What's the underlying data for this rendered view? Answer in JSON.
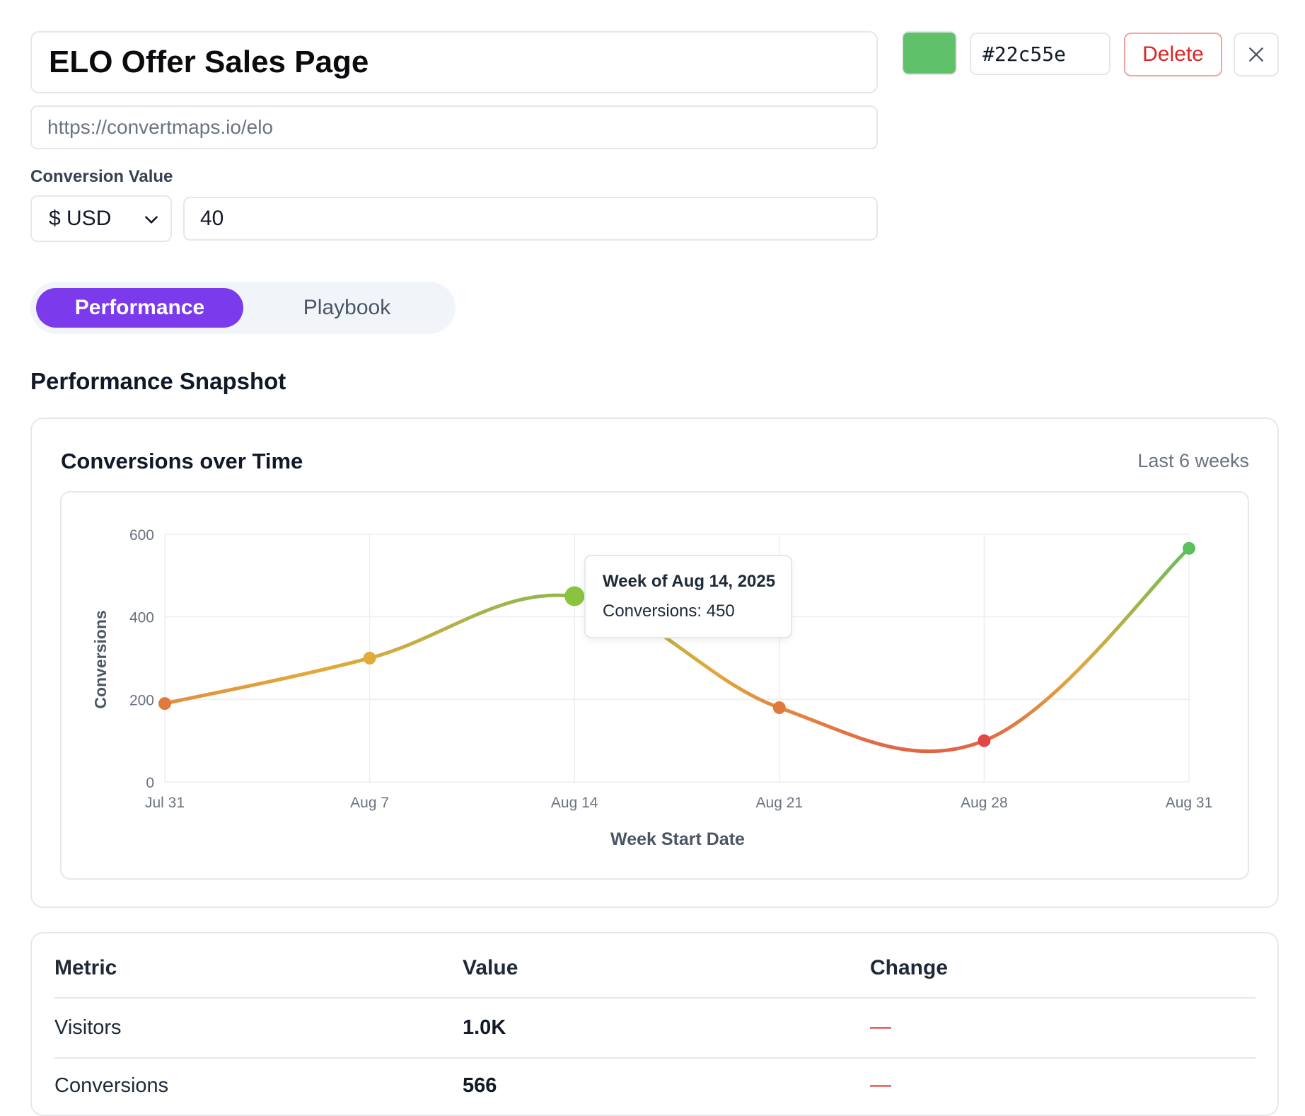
{
  "editor": {
    "title": "ELO Offer Sales Page",
    "url": "https://convertmaps.io/elo",
    "conversion_label": "Conversion Value",
    "currency": "$ USD",
    "value": "40",
    "color_hex": "#22c55e",
    "swatch_color": "#5fc169",
    "delete_label": "Delete"
  },
  "tabs": [
    {
      "label": "Performance",
      "active": true
    },
    {
      "label": "Playbook",
      "active": false
    }
  ],
  "section_title": "Performance Snapshot",
  "chart_card": {
    "title": "Conversions over Time",
    "range": "Last 6 weeks",
    "tooltip_title": "Week of Aug 14, 2025",
    "tooltip_body": "Conversions: 450"
  },
  "chart_data": {
    "type": "line",
    "categories": [
      "Jul 31",
      "Aug 7",
      "Aug 14",
      "Aug 21",
      "Aug 28",
      "Aug 31"
    ],
    "values": [
      190,
      300,
      450,
      180,
      100,
      566
    ],
    "xlabel": "Week Start Date",
    "ylabel": "Conversions",
    "ylim": [
      0,
      600
    ],
    "yticks": [
      0,
      200,
      400,
      600
    ],
    "grid": true,
    "point_colors": [
      "#e07a3c",
      "#e3a93a",
      "#8ac43f",
      "#e07a3c",
      "#e04848",
      "#5cbf5f"
    ]
  },
  "table": {
    "headers": [
      "Metric",
      "Value",
      "Change"
    ],
    "rows": [
      {
        "metric": "Visitors",
        "value": "1.0K",
        "change": "—"
      },
      {
        "metric": "Conversions",
        "value": "566",
        "change": "—"
      }
    ]
  }
}
